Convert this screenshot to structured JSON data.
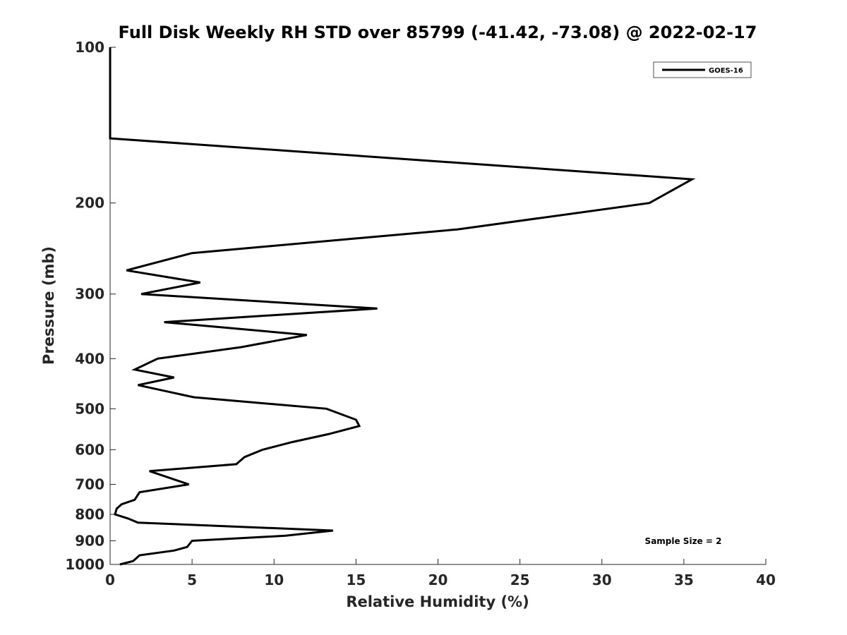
{
  "chart_data": {
    "type": "line",
    "title": "Full Disk Weekly RH STD over 85799 (-41.42, -73.08) @ 2022-02-17",
    "xlabel": "Relative Humidity (%)",
    "ylabel": "Pressure (mb)",
    "xlim": [
      0,
      40
    ],
    "ylim": [
      100,
      1000
    ],
    "y_scale": "log",
    "y_inverted": true,
    "xticks": [
      0,
      5,
      10,
      15,
      20,
      25,
      30,
      35,
      40
    ],
    "yticks": [
      100,
      200,
      300,
      400,
      500,
      600,
      700,
      800,
      900,
      1000
    ],
    "legend_position": "top-right",
    "annotation": "Sample Size = 2",
    "series": [
      {
        "name": "GOES-16",
        "color": "#000000",
        "points": [
          [
            0.0,
            100
          ],
          [
            0.0,
            150
          ],
          [
            35.5,
            180
          ],
          [
            32.9,
            200
          ],
          [
            21.2,
            225
          ],
          [
            5.0,
            250
          ],
          [
            1.0,
            270
          ],
          [
            5.5,
            285
          ],
          [
            1.9,
            300
          ],
          [
            16.3,
            320
          ],
          [
            3.3,
            340
          ],
          [
            12.0,
            360
          ],
          [
            8.0,
            380
          ],
          [
            2.9,
            400
          ],
          [
            1.5,
            420
          ],
          [
            3.9,
            435
          ],
          [
            1.7,
            450
          ],
          [
            5.1,
            475
          ],
          [
            13.2,
            500
          ],
          [
            15.0,
            525
          ],
          [
            15.2,
            540
          ],
          [
            13.3,
            560
          ],
          [
            11.1,
            580
          ],
          [
            9.3,
            600
          ],
          [
            8.2,
            620
          ],
          [
            7.7,
            640
          ],
          [
            2.4,
            660
          ],
          [
            4.8,
            700
          ],
          [
            1.8,
            725
          ],
          [
            1.5,
            750
          ],
          [
            0.7,
            765
          ],
          [
            0.4,
            780
          ],
          [
            0.3,
            800
          ],
          [
            1.1,
            815
          ],
          [
            1.7,
            830
          ],
          [
            13.6,
            860
          ],
          [
            10.7,
            880
          ],
          [
            5.0,
            900
          ],
          [
            4.7,
            925
          ],
          [
            3.9,
            940
          ],
          [
            1.8,
            960
          ],
          [
            1.4,
            985
          ],
          [
            0.6,
            1000
          ]
        ]
      }
    ]
  }
}
